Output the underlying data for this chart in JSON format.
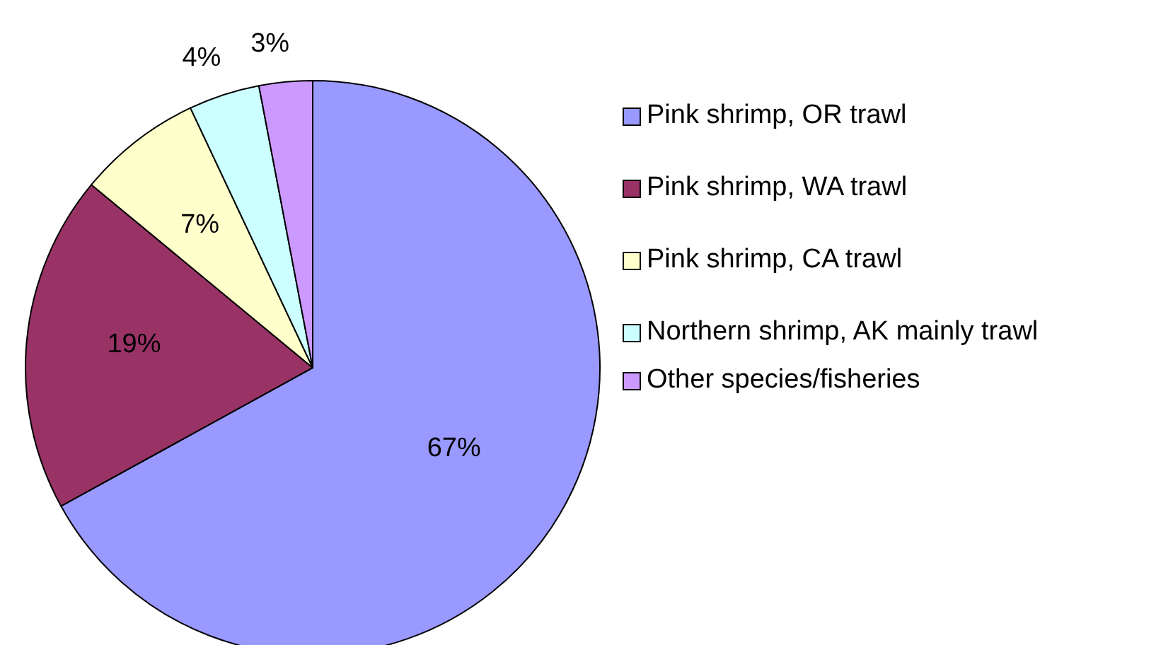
{
  "chart_data": {
    "type": "pie",
    "categories": [
      "Pink shrimp, OR trawl",
      "Pink shrimp, WA trawl",
      "Pink shrimp, CA trawl",
      "Northern shrimp, AK mainly trawl",
      "Other species/fisheries"
    ],
    "values": [
      67,
      19,
      7,
      4,
      3
    ],
    "value_labels": [
      "67%",
      "19%",
      "7%",
      "4%",
      "3%"
    ],
    "colors": [
      "#9999ff",
      "#993366",
      "#ffffcc",
      "#ccffff",
      "#cc99ff"
    ],
    "legend": "right"
  }
}
